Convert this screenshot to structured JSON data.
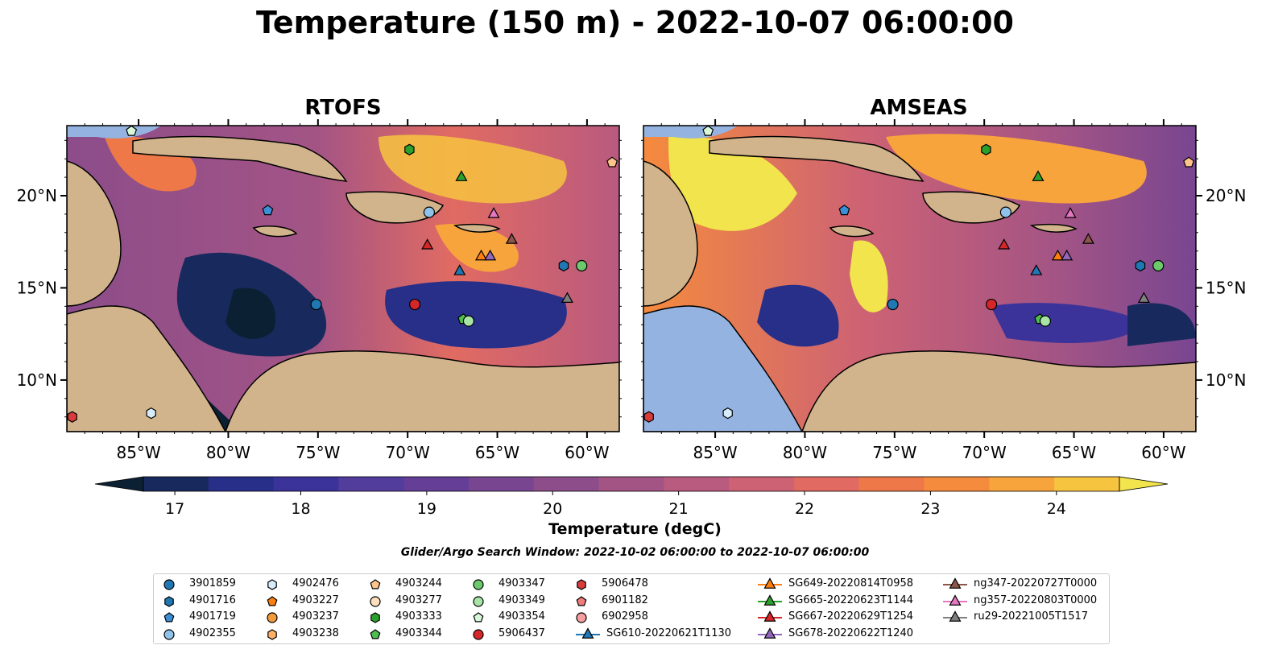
{
  "title": "Temperature (150 m) - 2022-10-07 06:00:00",
  "panels": [
    {
      "title": "RTOFS"
    },
    {
      "title": "AMSEAS"
    }
  ],
  "axes": {
    "lon_ticks": [
      "85°W",
      "80°W",
      "75°W",
      "70°W",
      "65°W",
      "60°W"
    ],
    "lat_ticks": [
      "20°N",
      "15°N",
      "10°N"
    ],
    "lon_range": [
      -89,
      -58.2
    ],
    "lat_range": [
      7.2,
      23.8
    ]
  },
  "colorbar": {
    "label": "Temperature (degC)",
    "ticks": [
      "17",
      "18",
      "19",
      "20",
      "21",
      "22",
      "23",
      "24"
    ],
    "range": [
      16.75,
      24.5
    ],
    "colors": [
      "#0b2033",
      "#182a5d",
      "#272f88",
      "#3b3399",
      "#523c9c",
      "#643e97",
      "#784691",
      "#8c4d8a",
      "#a35485",
      "#b95a7f",
      "#cd6274",
      "#e16b62",
      "#ee7848",
      "#f58b3d",
      "#f8a43c",
      "#f7c440",
      "#f2e44c"
    ]
  },
  "search_window": "Glider/Argo Search Window: 2022-10-02 06:00:00 to 2022-10-07 06:00:00",
  "platforms": [
    {
      "label": "3901859",
      "marker": "circle",
      "color": "#1f77b4",
      "lon": -75.1,
      "lat": 14.1
    },
    {
      "label": "4901716",
      "marker": "hexagon",
      "color": "#1f77b4",
      "lon": -61.3,
      "lat": 16.2
    },
    {
      "label": "4901719",
      "marker": "pentagon",
      "color": "#3a8fd6",
      "lon": -77.8,
      "lat": 19.2
    },
    {
      "label": "4902355",
      "marker": "circle",
      "color": "#8fc3ea",
      "lon": -68.8,
      "lat": 19.1
    },
    {
      "label": "4902476",
      "marker": "hexagon",
      "color": "#d6ecfa",
      "lon": -84.3,
      "lat": 8.2
    },
    {
      "label": "4903227",
      "marker": "pentagon",
      "color": "#ff7f0e",
      "lon": null,
      "lat": null
    },
    {
      "label": "4903237",
      "marker": "circle",
      "color": "#f39a3c",
      "lon": null,
      "lat": null
    },
    {
      "label": "4903238",
      "marker": "hexagon",
      "color": "#ffb066",
      "lon": null,
      "lat": null
    },
    {
      "label": "4903244",
      "marker": "pentagon",
      "color": "#ffc48a",
      "lon": -58.6,
      "lat": 21.8
    },
    {
      "label": "4903277",
      "marker": "circle",
      "color": "#ffe0bd",
      "lon": null,
      "lat": null
    },
    {
      "label": "4903333",
      "marker": "hexagon",
      "color": "#2ca02c",
      "lon": -69.9,
      "lat": 22.5
    },
    {
      "label": "4903344",
      "marker": "pentagon",
      "color": "#4fbf4f",
      "lon": -66.9,
      "lat": 13.3
    },
    {
      "label": "4903347",
      "marker": "circle",
      "color": "#6cc96c",
      "lon": -60.3,
      "lat": 16.2
    },
    {
      "label": "4903349",
      "marker": "circle",
      "color": "#a6e5a6",
      "lon": -66.6,
      "lat": 13.2
    },
    {
      "label": "4903354",
      "marker": "pentagon",
      "color": "#d9f7d9",
      "lon": -85.4,
      "lat": 23.5
    },
    {
      "label": "5906437",
      "marker": "circle",
      "color": "#d62728",
      "lon": -69.6,
      "lat": 14.1
    },
    {
      "label": "5906478",
      "marker": "hexagon",
      "color": "#d93b3b",
      "lon": -88.7,
      "lat": 8.0
    },
    {
      "label": "6901182",
      "marker": "pentagon",
      "color": "#f07c7c",
      "lon": null,
      "lat": null
    },
    {
      "label": "6902958",
      "marker": "circle",
      "color": "#f59f9f",
      "lon": null,
      "lat": null
    },
    {
      "label": "SG610-20220621T1130",
      "marker": "triangle",
      "color": "#1f77b4",
      "lon": -67.1,
      "lat": 15.9
    },
    {
      "label": "SG649-20220814T0958",
      "marker": "triangle",
      "color": "#ff7f0e",
      "lon": -65.9,
      "lat": 16.7
    },
    {
      "label": "SG665-20220623T1144",
      "marker": "triangle",
      "color": "#2ca02c",
      "lon": -67.0,
      "lat": 21.0
    },
    {
      "label": "SG667-20220629T1254",
      "marker": "triangle",
      "color": "#d62728",
      "lon": -68.9,
      "lat": 17.3
    },
    {
      "label": "SG678-20220622T1240",
      "marker": "triangle",
      "color": "#9467bd",
      "lon": -65.4,
      "lat": 16.7
    },
    {
      "label": "ng347-20220727T0000",
      "marker": "triangle",
      "color": "#8c564b",
      "lon": -64.2,
      "lat": 17.6
    },
    {
      "label": "ng357-20220803T0000",
      "marker": "triangle",
      "color": "#e377c2",
      "lon": -65.2,
      "lat": 19.0
    },
    {
      "label": "ru29-20221005T1517",
      "marker": "triangle",
      "color": "#7f7f7f",
      "lon": -61.1,
      "lat": 14.4
    }
  ]
}
